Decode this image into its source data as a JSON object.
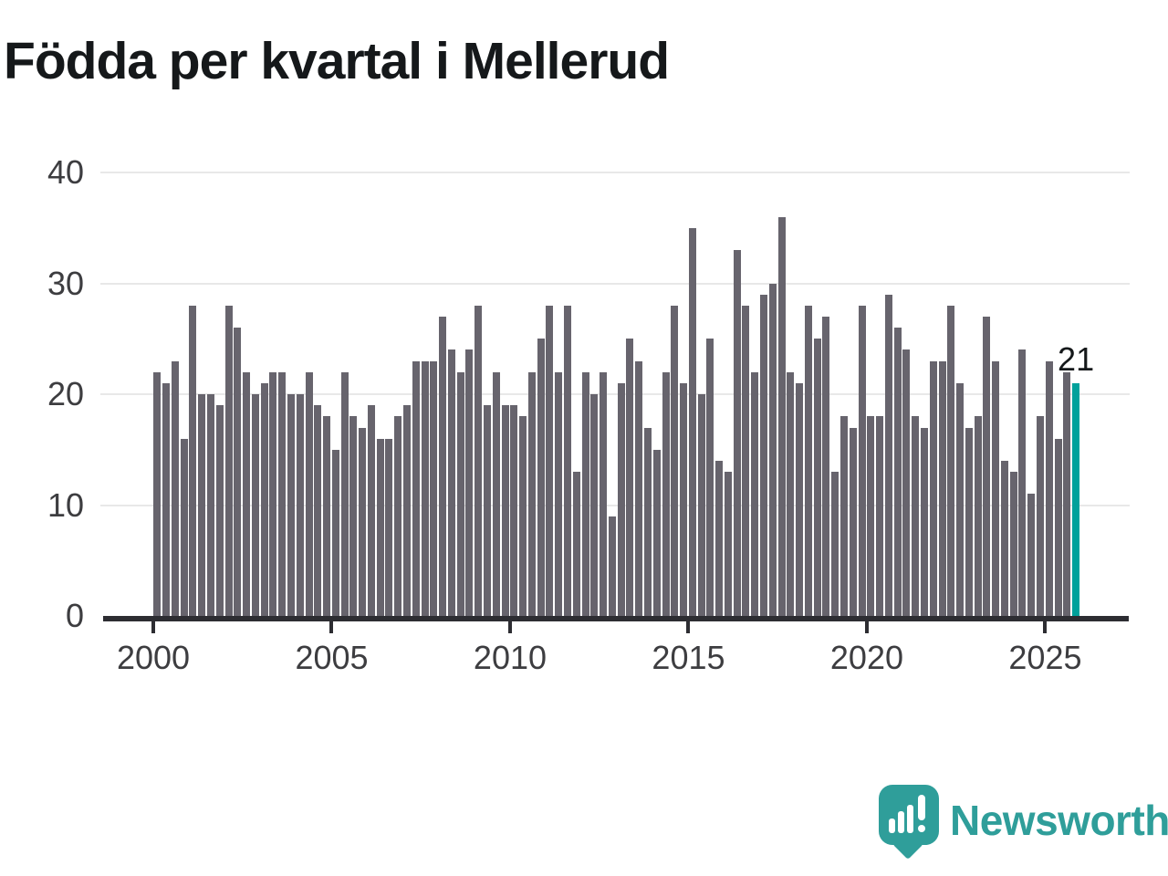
{
  "title": "Födda per kvartal i Mellerud",
  "chart_data": {
    "type": "bar",
    "frequency": "quarterly",
    "x_start": "2000 Q1",
    "x_end": "2025 Q4",
    "values": [
      22,
      21,
      23,
      16,
      28,
      20,
      20,
      19,
      28,
      26,
      22,
      20,
      21,
      22,
      22,
      20,
      20,
      22,
      19,
      18,
      15,
      22,
      18,
      17,
      19,
      16,
      16,
      18,
      19,
      23,
      23,
      23,
      27,
      24,
      22,
      24,
      28,
      19,
      22,
      19,
      19,
      18,
      22,
      25,
      28,
      22,
      28,
      13,
      22,
      20,
      22,
      9,
      21,
      25,
      23,
      17,
      15,
      22,
      28,
      21,
      35,
      20,
      25,
      14,
      13,
      33,
      28,
      22,
      29,
      30,
      36,
      22,
      21,
      28,
      25,
      27,
      13,
      18,
      17,
      28,
      18,
      18,
      29,
      26,
      24,
      18,
      17,
      23,
      23,
      28,
      21,
      17,
      18,
      27,
      23,
      14,
      13,
      24,
      11,
      18,
      23,
      16,
      22,
      21
    ],
    "title": "Födda per kvartal i Mellerud",
    "xlabel": "",
    "ylabel": "",
    "x_tick_labels": [
      "2000",
      "2005",
      "2010",
      "2015",
      "2020",
      "2025"
    ],
    "y_tick_labels": [
      "0",
      "10",
      "20",
      "30",
      "40"
    ],
    "ylim": [
      0,
      40
    ],
    "grid": "horizontal",
    "legend": "none",
    "bar_color": "#67646d",
    "highlight": {
      "index": 103,
      "period": "2025 Q4",
      "value": 21,
      "label": "21",
      "color": "#00a19b"
    }
  },
  "annotation": {
    "last_value_label": "21"
  },
  "branding": {
    "logo_text": "Newsworthy",
    "logo_icon": "newsworthy-speech-bubble-barchart-icon",
    "accent_color": "#2f9e9a"
  }
}
